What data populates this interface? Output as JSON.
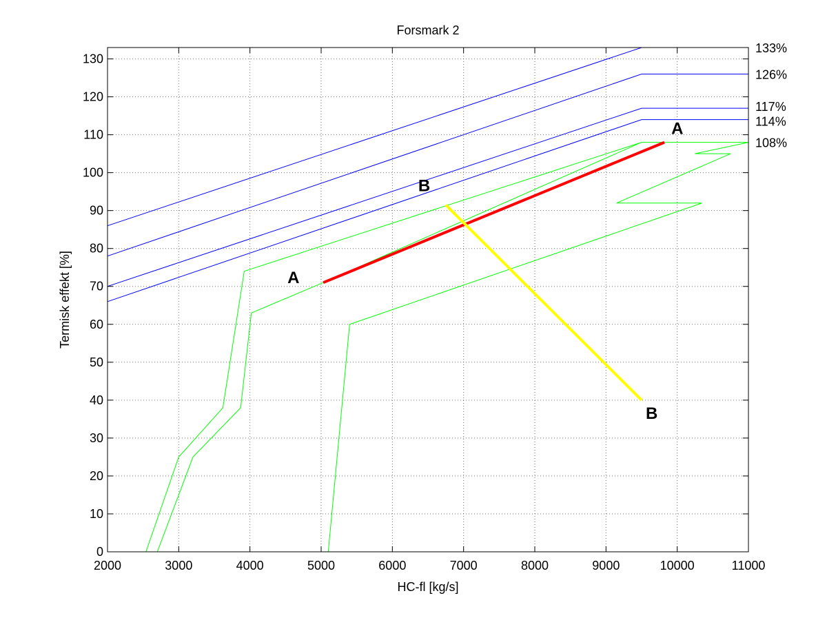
{
  "chart_data": {
    "type": "line",
    "title": "Forsmark 2",
    "xlabel": "HC-fl [kg/s]",
    "ylabel": "Termisk effekt [%]",
    "xlim": [
      2000,
      11000
    ],
    "ylim": [
      0,
      133
    ],
    "xticks": [
      2000,
      3000,
      4000,
      5000,
      6000,
      7000,
      8000,
      9000,
      10000,
      11000
    ],
    "yticks": [
      0,
      10,
      20,
      30,
      40,
      50,
      60,
      70,
      80,
      90,
      100,
      110,
      120,
      130
    ],
    "grid": true,
    "colors": {
      "limit_lines": "#0000ff",
      "operating_region": "#00ff00",
      "line_AA": "#ff0000",
      "line_BB": "#ffff00"
    },
    "limit_lines": [
      {
        "label": "133%",
        "points": [
          [
            2000,
            86
          ],
          [
            9500,
            133
          ],
          [
            11000,
            133
          ]
        ]
      },
      {
        "label": "126%",
        "points": [
          [
            2000,
            78
          ],
          [
            9500,
            126
          ],
          [
            11000,
            126
          ]
        ]
      },
      {
        "label": "117%",
        "points": [
          [
            2000,
            70
          ],
          [
            9500,
            117
          ],
          [
            11000,
            117
          ]
        ]
      },
      {
        "label": "114%",
        "points": [
          [
            2000,
            66
          ],
          [
            9500,
            114
          ],
          [
            11000,
            114
          ]
        ]
      },
      {
        "label": "108%",
        "points": []
      }
    ],
    "operating_region": [
      {
        "points": [
          [
            2540,
            0
          ],
          [
            3000,
            25
          ],
          [
            3620,
            38
          ],
          [
            3920,
            74
          ],
          [
            9500,
            108
          ],
          [
            11000,
            108
          ],
          [
            10250,
            105
          ],
          [
            10750,
            105
          ],
          [
            9150,
            92
          ],
          [
            10350,
            92
          ],
          [
            5400,
            60
          ],
          [
            5100,
            0
          ]
        ]
      },
      {
        "points": [
          [
            2700,
            0
          ],
          [
            3200,
            25
          ],
          [
            3870,
            38
          ],
          [
            4020,
            63
          ],
          [
            5030,
            71
          ],
          [
            9500,
            108
          ]
        ]
      }
    ],
    "lines": [
      {
        "points": [
          [
            5030,
            71
          ],
          [
            9820,
            108
          ]
        ],
        "start_label": "A",
        "end_label": "A"
      },
      {
        "points": [
          [
            6750,
            91.5
          ],
          [
            9500,
            40
          ]
        ],
        "start_label": "B",
        "end_label": "B"
      }
    ]
  }
}
